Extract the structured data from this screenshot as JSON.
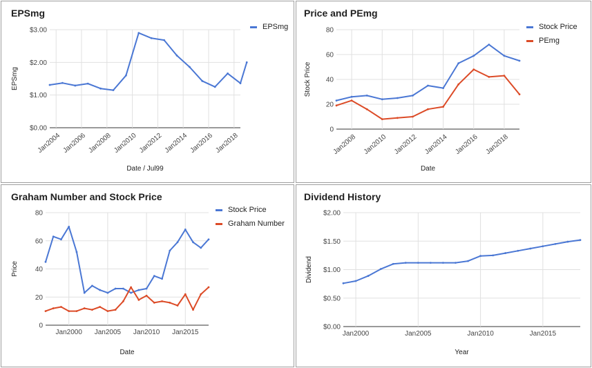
{
  "chart_data": [
    {
      "type": "line",
      "title": "EPSmg",
      "xlabel": "Date / Jul99",
      "ylabel": "EPSmg",
      "x_tick_labels": [
        "Jan2004",
        "Jan2006",
        "Jan2008",
        "Jan2010",
        "Jan2012",
        "Jan2014",
        "Jan2016",
        "Jan2018"
      ],
      "y_ticks": [
        {
          "value": 0,
          "label": "$0.00"
        },
        {
          "value": 1,
          "label": "$1.00"
        },
        {
          "value": 2,
          "label": "$2.00"
        },
        {
          "value": 3,
          "label": "$3.00"
        }
      ],
      "ylim": [
        0,
        3
      ],
      "xlim": [
        "Jul2003",
        "Jul2018"
      ],
      "legend": "top-right",
      "grid": true,
      "x": [
        "Jul2003",
        "Jul2004",
        "Jul2005",
        "Jul2006",
        "Jul2007",
        "Jul2008",
        "Jul2009",
        "Jul2010",
        "Jul2011",
        "Jul2012",
        "Jul2013",
        "Jul2014",
        "Jul2015",
        "Jul2016",
        "Jul2017",
        "Jul2018"
      ],
      "series": [
        {
          "name": "EPSmg",
          "color": "#4a77d4",
          "values": [
            1.31,
            1.37,
            1.29,
            1.35,
            1.2,
            1.15,
            1.6,
            2.9,
            2.74,
            2.68,
            2.21,
            1.86,
            1.43,
            1.25,
            1.66,
            1.36
          ]
        }
      ],
      "extra_point": {
        "x": "Jan2019",
        "value": 2.0
      }
    },
    {
      "type": "line",
      "title": "Price and PEmg",
      "xlabel": "Date",
      "ylabel": "Stock Price",
      "x_tick_labels": [
        "Jan2008",
        "Jan2010",
        "Jan2012",
        "Jan2014",
        "Jan2016",
        "Jan2018"
      ],
      "y_ticks": [
        {
          "value": 0,
          "label": "0"
        },
        {
          "value": 20,
          "label": "20"
        },
        {
          "value": 40,
          "label": "40"
        },
        {
          "value": 60,
          "label": "60"
        },
        {
          "value": 80,
          "label": "80"
        }
      ],
      "ylim": [
        0,
        80
      ],
      "legend": "top-right",
      "grid": true,
      "x": [
        "Jan2007",
        "Jan2008",
        "Jan2009",
        "Jan2010",
        "Jan2011",
        "Jan2012",
        "Jan2013",
        "Jan2014",
        "Jan2015",
        "Jan2016",
        "Jan2017",
        "Jan2018",
        "Jan2019"
      ],
      "series": [
        {
          "name": "Stock Price",
          "color": "#4a77d4",
          "values": [
            23,
            26,
            27,
            24,
            25,
            27,
            35,
            33,
            53,
            59,
            68,
            59,
            55
          ]
        },
        {
          "name": "PEmg",
          "color": "#dc4b27",
          "values": [
            19,
            23,
            16,
            8,
            9,
            10,
            16,
            18,
            36,
            48,
            42,
            43,
            28
          ]
        }
      ]
    },
    {
      "type": "line",
      "title": "Graham Number and Stock Price",
      "xlabel": "Date",
      "ylabel": "Price",
      "x_tick_labels": [
        "Jan2000",
        "Jan2005",
        "Jan2010",
        "Jan2015"
      ],
      "y_ticks": [
        {
          "value": 0,
          "label": "0"
        },
        {
          "value": 20,
          "label": "20"
        },
        {
          "value": 40,
          "label": "40"
        },
        {
          "value": 60,
          "label": "60"
        },
        {
          "value": 80,
          "label": "80"
        }
      ],
      "ylim": [
        0,
        80
      ],
      "legend": "top-right",
      "grid": true,
      "x": [
        1997,
        1998,
        1999,
        2000,
        2001,
        2002,
        2003,
        2004,
        2005,
        2006,
        2007,
        2008,
        2009,
        2010,
        2011,
        2012,
        2013,
        2014,
        2015,
        2016,
        2017,
        2018
      ],
      "series": [
        {
          "name": "Stock Price",
          "color": "#4a77d4",
          "values": [
            45,
            63,
            61,
            70,
            52,
            23,
            28,
            25,
            23,
            26,
            26,
            23,
            25,
            26,
            35,
            33,
            53,
            59,
            68,
            59,
            55,
            61
          ]
        },
        {
          "name": "Graham Number",
          "color": "#dc4b27",
          "values": [
            10,
            12,
            13,
            10,
            10,
            12,
            11,
            13,
            10,
            11,
            17,
            27,
            18,
            21,
            16,
            17,
            16,
            14,
            22,
            11,
            22,
            27
          ]
        }
      ]
    },
    {
      "type": "line",
      "title": "Dividend History",
      "xlabel": "Year",
      "ylabel": "Dividend",
      "x_tick_labels": [
        "Jan2000",
        "Jan2005",
        "Jan2010",
        "Jan2015"
      ],
      "y_ticks": [
        {
          "value": 0,
          "label": "$0.00"
        },
        {
          "value": 0.5,
          "label": "$0.50"
        },
        {
          "value": 1,
          "label": "$1.00"
        },
        {
          "value": 1.5,
          "label": "$1.50"
        },
        {
          "value": 2,
          "label": "$2.00"
        }
      ],
      "ylim": [
        0,
        2
      ],
      "grid": true,
      "x": [
        1999,
        2000,
        2001,
        2002,
        2003,
        2004,
        2005,
        2006,
        2007,
        2008,
        2009,
        2010,
        2011,
        2012,
        2013,
        2014,
        2015,
        2016,
        2017,
        2018
      ],
      "series": [
        {
          "name": "",
          "color": "#4a77d4",
          "values": [
            0.76,
            0.8,
            0.89,
            1.01,
            1.1,
            1.12,
            1.12,
            1.12,
            1.12,
            1.12,
            1.15,
            1.24,
            1.25,
            1.29,
            1.33,
            1.37,
            1.41,
            1.45,
            1.49,
            1.52
          ]
        }
      ]
    }
  ]
}
